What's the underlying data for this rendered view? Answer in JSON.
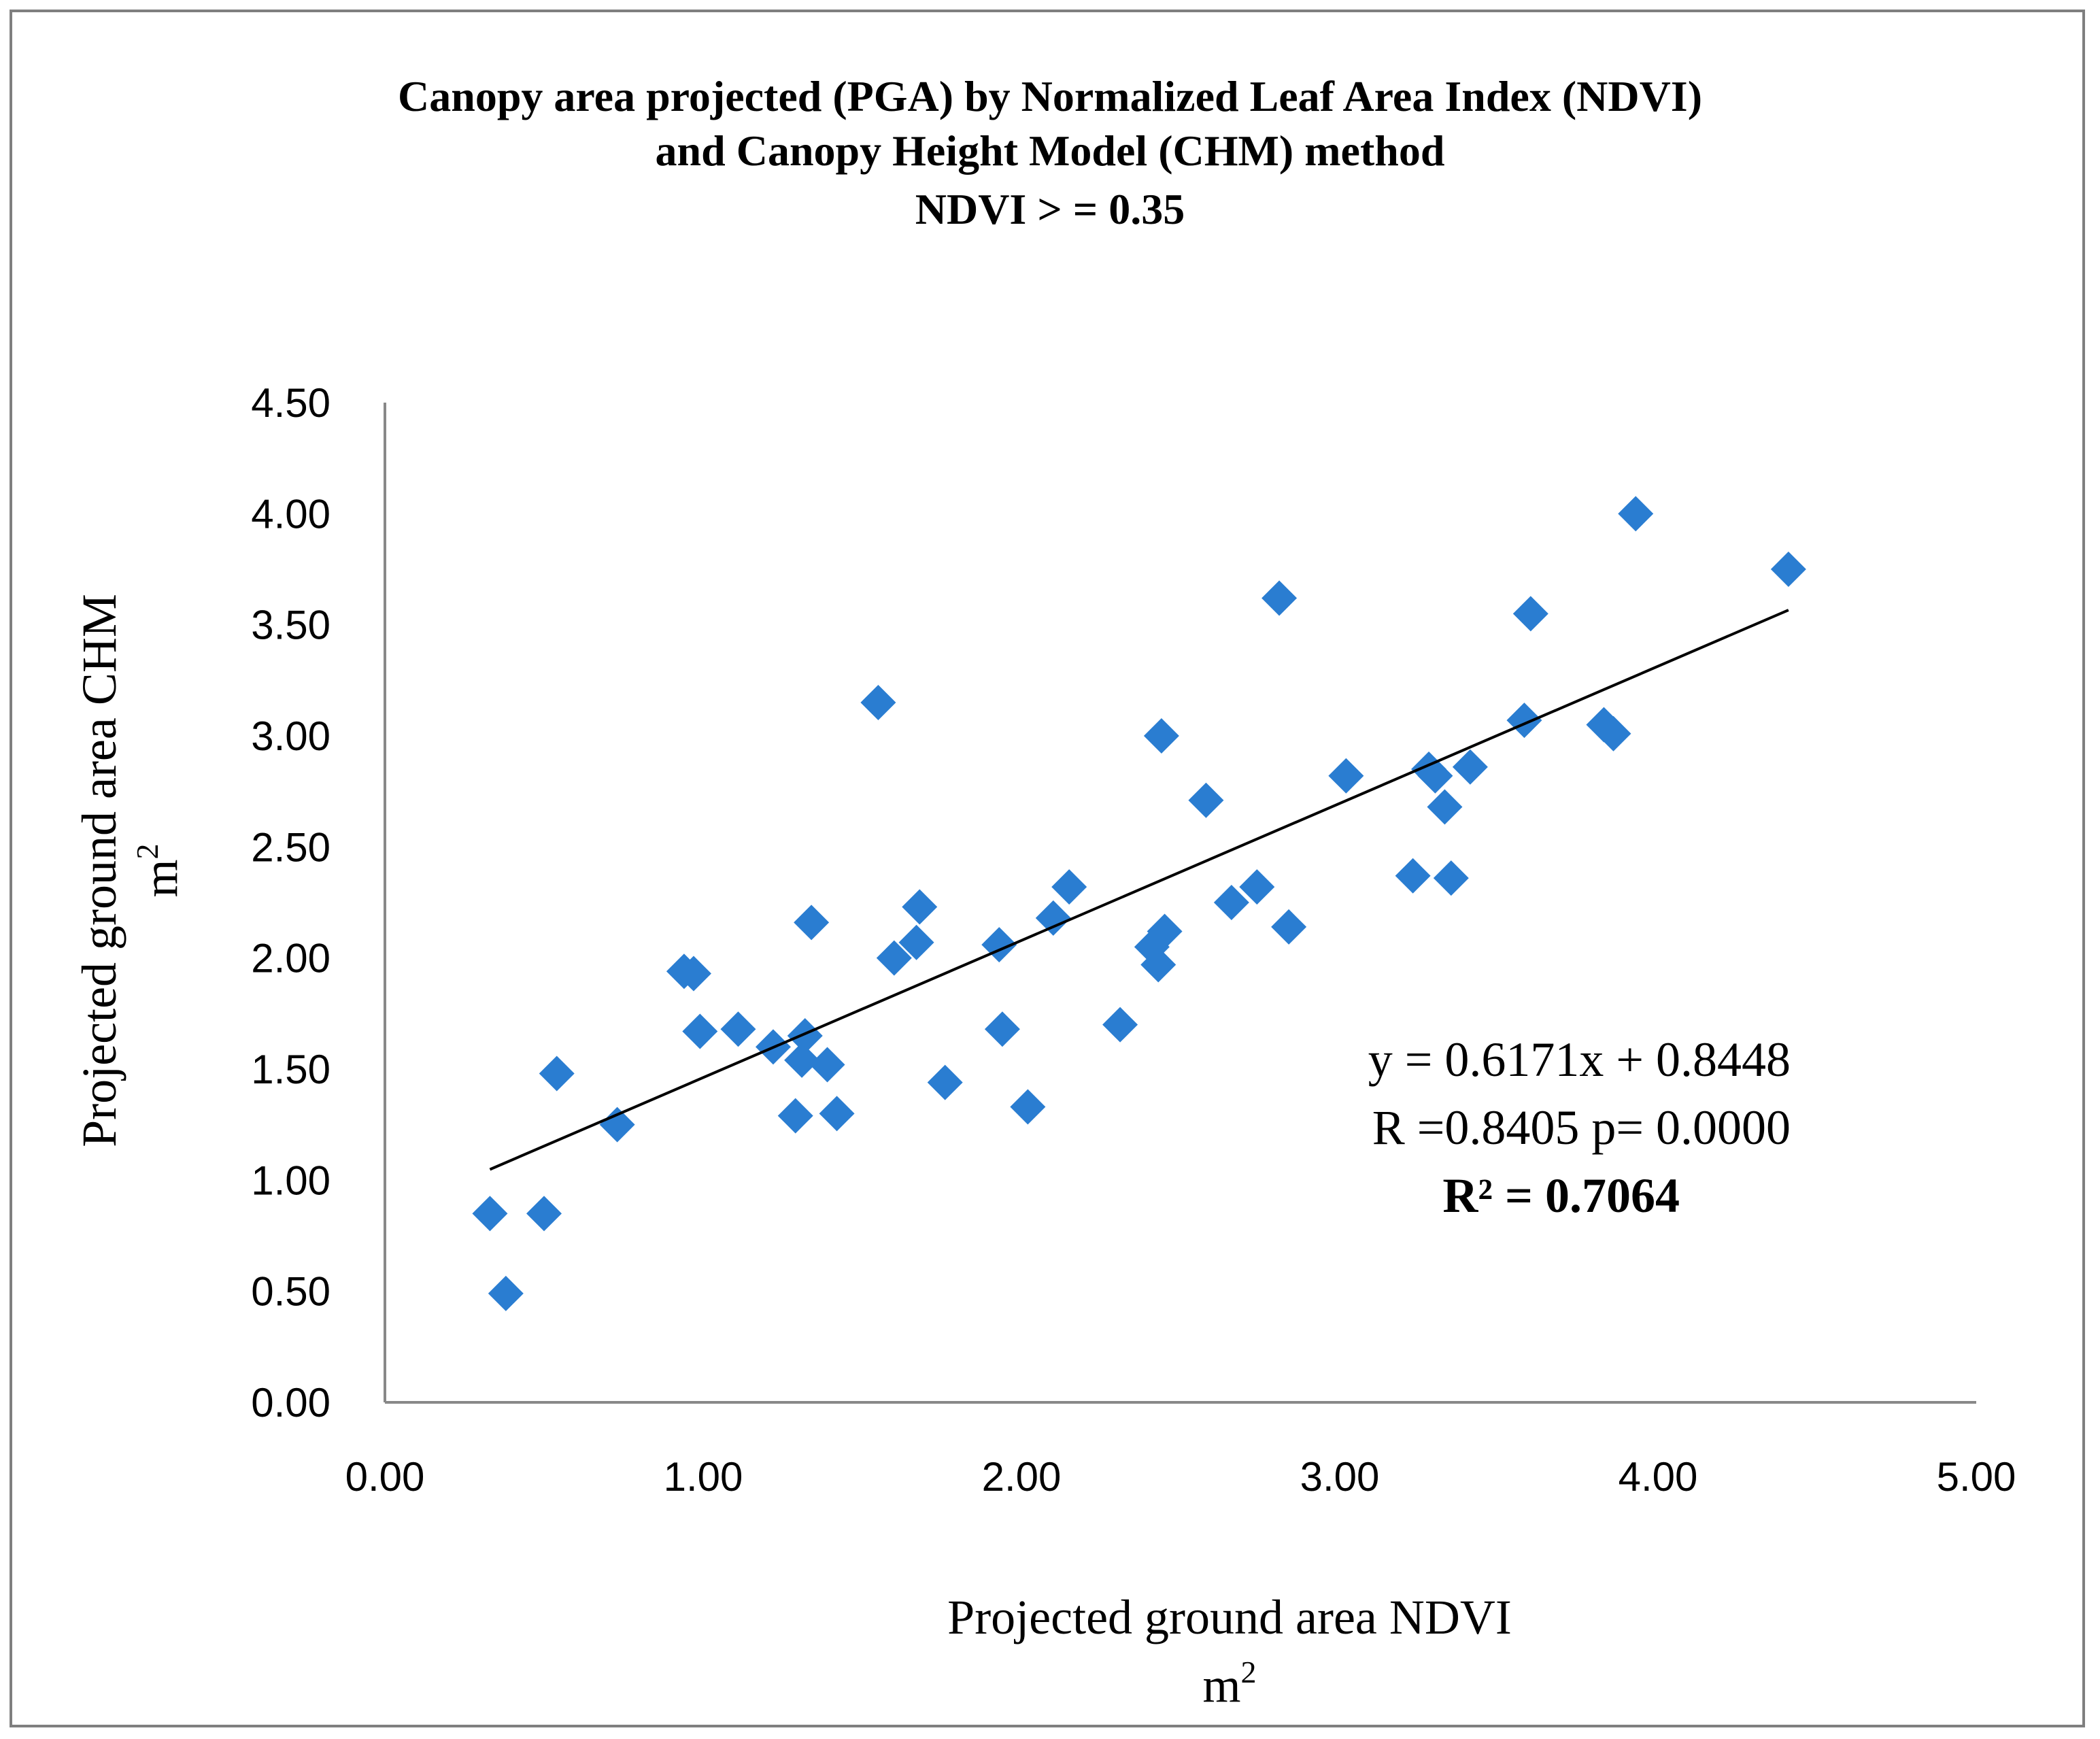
{
  "chart_data": {
    "type": "scatter",
    "title_lines": [
      "Canopy area projected (PGA) by Normalized Leaf Area Index (NDVI)",
      "and Canopy Height Model (CHM) method",
      "NDVI > = 0.35"
    ],
    "xlabel": "Projected ground area NDVI",
    "xlabel_unit": "m",
    "ylabel": "Projected  ground area CHM",
    "ylabel_unit": "m",
    "unit_exponent": "2",
    "xlim": [
      0,
      5
    ],
    "ylim": [
      0,
      4.5
    ],
    "x_ticks": [
      "0.00",
      "1.00",
      "2.00",
      "3.00",
      "4.00",
      "5.00"
    ],
    "y_ticks": [
      "0.00",
      "0.50",
      "1.00",
      "1.50",
      "2.00",
      "2.50",
      "3.00",
      "3.50",
      "4.00",
      "4.50"
    ],
    "marker_color": "#2a7dd1",
    "trendline": {
      "slope": 0.6171,
      "intercept": 0.8448,
      "x_start": 0.33,
      "x_end": 4.41,
      "color": "#000000"
    },
    "annotations": {
      "equation": "y = 0.6171x + 0.8448",
      "r_line": "R =0.8405 p= 0.0000",
      "r2": "R² = 0.7064"
    },
    "points": [
      [
        0.33,
        0.85
      ],
      [
        0.38,
        0.49
      ],
      [
        0.5,
        0.85
      ],
      [
        0.54,
        1.48
      ],
      [
        0.73,
        1.25
      ],
      [
        0.94,
        1.94
      ],
      [
        0.97,
        1.93
      ],
      [
        0.99,
        1.67
      ],
      [
        1.11,
        1.68
      ],
      [
        1.22,
        1.6
      ],
      [
        1.29,
        1.29
      ],
      [
        1.31,
        1.54
      ],
      [
        1.32,
        1.65
      ],
      [
        1.34,
        2.16
      ],
      [
        1.39,
        1.52
      ],
      [
        1.42,
        1.3
      ],
      [
        1.55,
        3.15
      ],
      [
        1.6,
        2.0
      ],
      [
        1.67,
        2.07
      ],
      [
        1.68,
        2.23
      ],
      [
        1.76,
        1.44
      ],
      [
        1.93,
        2.06
      ],
      [
        1.94,
        1.68
      ],
      [
        2.02,
        1.33
      ],
      [
        2.1,
        2.18
      ],
      [
        2.15,
        2.32
      ],
      [
        2.31,
        1.7
      ],
      [
        2.41,
        2.05
      ],
      [
        2.43,
        1.97
      ],
      [
        2.44,
        3.0
      ],
      [
        2.45,
        2.12
      ],
      [
        2.58,
        2.71
      ],
      [
        2.66,
        2.25
      ],
      [
        2.74,
        2.32
      ],
      [
        2.81,
        3.62
      ],
      [
        2.84,
        2.14
      ],
      [
        3.02,
        2.82
      ],
      [
        3.23,
        2.37
      ],
      [
        3.28,
        2.85
      ],
      [
        3.3,
        2.82
      ],
      [
        3.33,
        2.68
      ],
      [
        3.35,
        2.36
      ],
      [
        3.41,
        2.86
      ],
      [
        3.58,
        3.07
      ],
      [
        3.6,
        3.55
      ],
      [
        3.83,
        3.05
      ],
      [
        3.86,
        3.01
      ],
      [
        3.93,
        4.0
      ],
      [
        4.41,
        3.75
      ]
    ]
  }
}
